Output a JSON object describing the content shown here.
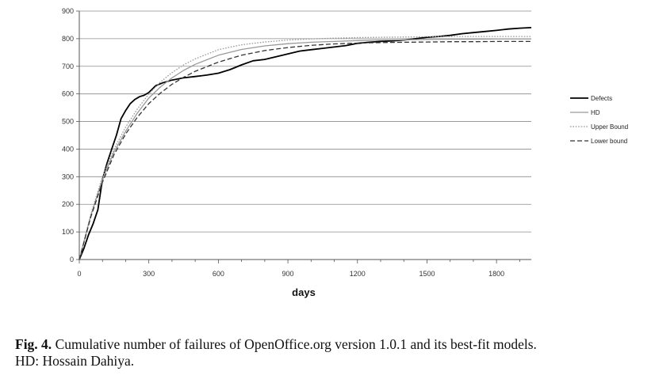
{
  "chart_data": {
    "type": "line",
    "title": "",
    "xlabel": "days",
    "ylabel": "",
    "xlim": [
      0,
      1950
    ],
    "ylim": [
      0,
      900
    ],
    "x_ticks": [
      0,
      300,
      600,
      900,
      1200,
      1500,
      1800
    ],
    "y_ticks": [
      0,
      100,
      200,
      300,
      400,
      500,
      600,
      700,
      800,
      900
    ],
    "grid": "horizontal",
    "legend": "right",
    "series": [
      {
        "name": "Defects",
        "style": "solid",
        "color": "#000000",
        "x": [
          0,
          20,
          40,
          60,
          80,
          100,
          120,
          140,
          160,
          180,
          200,
          220,
          240,
          260,
          280,
          300,
          330,
          360,
          400,
          450,
          500,
          550,
          600,
          650,
          700,
          750,
          800,
          850,
          900,
          950,
          1000,
          1050,
          1100,
          1150,
          1200,
          1250,
          1300,
          1350,
          1400,
          1450,
          1500,
          1550,
          1600,
          1650,
          1700,
          1750,
          1800,
          1850,
          1900,
          1950
        ],
        "y": [
          0,
          40,
          90,
          130,
          180,
          290,
          350,
          400,
          450,
          510,
          540,
          565,
          580,
          590,
          595,
          605,
          630,
          640,
          650,
          658,
          663,
          668,
          675,
          688,
          705,
          720,
          725,
          735,
          745,
          755,
          760,
          765,
          770,
          775,
          783,
          787,
          790,
          792,
          795,
          800,
          805,
          808,
          812,
          818,
          822,
          826,
          830,
          835,
          838,
          840
        ]
      },
      {
        "name": "HD",
        "style": "solid",
        "color": "#999999",
        "x": [
          0,
          50,
          100,
          150,
          200,
          250,
          300,
          350,
          400,
          450,
          500,
          600,
          700,
          800,
          900,
          1000,
          1100,
          1200,
          1300,
          1400,
          1500,
          1600,
          1700,
          1800,
          1950
        ],
        "y": [
          0,
          160,
          290,
          390,
          465,
          530,
          585,
          625,
          658,
          685,
          707,
          740,
          761,
          774,
          782,
          787,
          790,
          793,
          795,
          796,
          797,
          798,
          798,
          799,
          799
        ]
      },
      {
        "name": "Upper Bound",
        "style": "dotted",
        "color": "#999999",
        "x": [
          0,
          50,
          100,
          150,
          200,
          250,
          300,
          350,
          400,
          450,
          500,
          600,
          700,
          800,
          900,
          1000,
          1100,
          1200,
          1300,
          1400,
          1500,
          1600,
          1700,
          1800,
          1950
        ],
        "y": [
          0,
          165,
          300,
          400,
          480,
          545,
          600,
          643,
          677,
          705,
          727,
          760,
          778,
          788,
          795,
          799,
          802,
          804,
          805,
          806,
          807,
          808,
          808,
          808,
          808
        ]
      },
      {
        "name": "Lower bound",
        "style": "dashed",
        "color": "#333333",
        "x": [
          0,
          50,
          100,
          150,
          200,
          250,
          300,
          350,
          400,
          450,
          500,
          600,
          700,
          800,
          900,
          1000,
          1100,
          1200,
          1300,
          1400,
          1500,
          1600,
          1700,
          1800,
          1950
        ],
        "y": [
          0,
          155,
          280,
          380,
          455,
          515,
          565,
          603,
          635,
          660,
          682,
          715,
          740,
          757,
          768,
          776,
          781,
          784,
          786,
          787,
          788,
          789,
          789,
          790,
          790
        ]
      }
    ]
  },
  "caption": {
    "label": "Fig. 4.",
    "text": " Cumulative number of failures of OpenOffice.org version 1.0.1 and its best-fit models.",
    "line2": "HD: Hossain Dahiya."
  }
}
